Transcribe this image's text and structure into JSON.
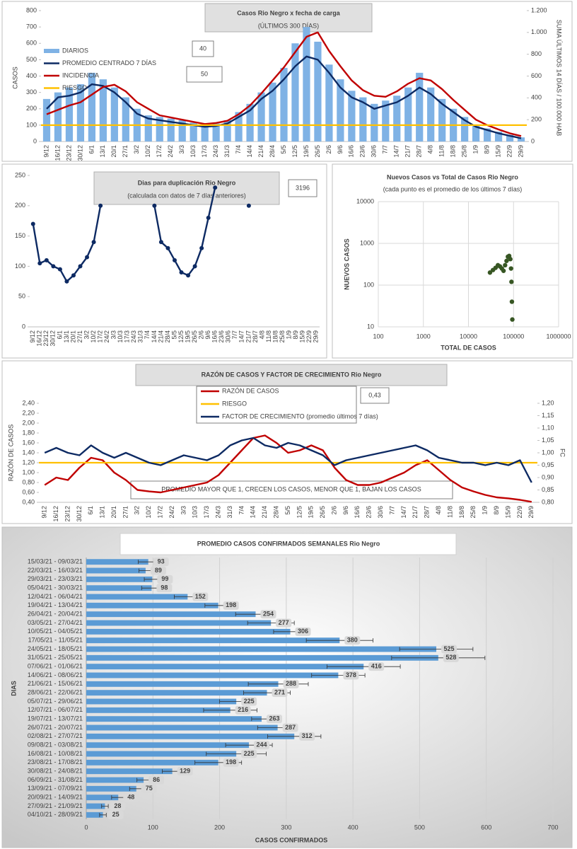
{
  "chart_data": [
    {
      "type": "combo",
      "title": "Casos Rio Negro x fecha de carga",
      "subtitle": "(ÚLTIMOS 300 DÍAS)",
      "ylabel": "CASOS",
      "y2label": "SUMA ÚLTIMOS 14 DÍAS / 100.000 HAB",
      "annotations": [
        "40",
        "50"
      ],
      "categories": [
        "9/12",
        "16/12",
        "23/12",
        "30/12",
        "6/1",
        "13/1",
        "20/1",
        "27/1",
        "3/2",
        "10/2",
        "17/2",
        "24/2",
        "3/3",
        "10/3",
        "17/3",
        "24/3",
        "31/3",
        "7/4",
        "14/4",
        "21/4",
        "28/4",
        "5/5",
        "12/5",
        "19/5",
        "26/5",
        "2/6",
        "9/6",
        "16/6",
        "23/6",
        "30/6",
        "7/7",
        "14/7",
        "21/7",
        "28/7",
        "4/8",
        "11/8",
        "18/8",
        "25/8",
        "1/9",
        "8/9",
        "15/9",
        "22/9",
        "29/9"
      ],
      "series": [
        {
          "name": "DIARIOS",
          "kind": "bar",
          "color": "#7fb2e5",
          "values": [
            260,
            300,
            330,
            350,
            420,
            380,
            330,
            270,
            200,
            160,
            150,
            140,
            130,
            115,
            100,
            110,
            130,
            180,
            230,
            300,
            360,
            450,
            600,
            700,
            610,
            470,
            380,
            310,
            270,
            230,
            250,
            280,
            330,
            420,
            330,
            260,
            200,
            150,
            100,
            80,
            60,
            40,
            25
          ]
        },
        {
          "name": "PROMEDIO CENTRADO 7 DÍAS",
          "kind": "line",
          "color": "#0d2a63",
          "values": [
            200,
            270,
            280,
            300,
            350,
            340,
            300,
            240,
            170,
            140,
            130,
            120,
            110,
            100,
            90,
            95,
            110,
            150,
            190,
            260,
            310,
            380,
            460,
            520,
            500,
            420,
            330,
            270,
            240,
            200,
            220,
            240,
            280,
            330,
            290,
            230,
            180,
            130,
            90,
            70,
            50,
            35,
            20
          ]
        },
        {
          "name": "INCIDENCIA",
          "kind": "line",
          "axis": "y2",
          "color": "#c00000",
          "values": [
            250,
            290,
            330,
            360,
            430,
            500,
            520,
            460,
            360,
            300,
            240,
            220,
            200,
            180,
            160,
            170,
            190,
            250,
            330,
            440,
            560,
            680,
            820,
            960,
            1000,
            830,
            690,
            560,
            470,
            420,
            410,
            460,
            530,
            580,
            560,
            480,
            380,
            290,
            200,
            150,
            110,
            75,
            50
          ]
        },
        {
          "name": "RIESGO",
          "kind": "hline",
          "color": "#ffc000",
          "value": 100
        }
      ],
      "ylim": [
        0,
        800
      ],
      "yticks": [
        0,
        100,
        200,
        300,
        400,
        500,
        600,
        700,
        800
      ],
      "y2lim": [
        0,
        1200
      ],
      "y2ticks": [
        0,
        200,
        400,
        600,
        800,
        {
          "value": 1000,
          "label": "1.000"
        },
        {
          "value": 1200,
          "label": "1.200"
        }
      ],
      "grid": false,
      "legend": "upper-left"
    },
    {
      "type": "line",
      "title": "Dias para duplicación Rio Negro",
      "subtitle": "(calculada con datos de 7 días anteriores)",
      "annotations": [
        "3196"
      ],
      "categories": [
        "9/12",
        "16/12",
        "23/12",
        "30/12",
        "6/1",
        "13/1",
        "20/1",
        "27/1",
        "3/2",
        "10/2",
        "17/2",
        "24/2",
        "3/3",
        "10/3",
        "17/3",
        "24/3",
        "31/3",
        "7/4",
        "14/4",
        "21/4",
        "28/4",
        "5/5",
        "12/5",
        "19/5",
        "26/5",
        "2/6",
        "9/6",
        "16/6",
        "23/6",
        "30/6",
        "7/7",
        "14/7",
        "21/7",
        "28/7",
        "4/8",
        "11/8",
        "18/8",
        "25/8",
        "1/9",
        "8/9",
        "15/9",
        "22/9",
        "29/9"
      ],
      "values": [
        170,
        105,
        110,
        100,
        95,
        75,
        85,
        100,
        115,
        140,
        200,
        null,
        null,
        null,
        null,
        null,
        null,
        null,
        200,
        140,
        130,
        110,
        90,
        85,
        100,
        130,
        180,
        230,
        null,
        null,
        null,
        null,
        200,
        null,
        null,
        null,
        null,
        null,
        null,
        null,
        null,
        null,
        null
      ],
      "color": "#0d2a63",
      "markers": true,
      "ylim": [
        0,
        250
      ],
      "yticks": [
        0,
        50,
        100,
        150,
        200,
        250
      ],
      "grid": false
    },
    {
      "type": "scatter",
      "title": "Nuevos Casos vs Total de Casos Rio Negro",
      "subtitle": "(cada punto es el promedio de los últimos 7 días)",
      "xlabel": "TOTAL DE CASOS",
      "ylabel": "NUEVOS CASOS",
      "xscale": "log",
      "yscale": "log",
      "x": [
        30000,
        35000,
        40000,
        45000,
        50000,
        55000,
        60000,
        65000,
        70000,
        75000,
        80000,
        85000,
        88000,
        90000,
        92000,
        94000
      ],
      "y": [
        200,
        230,
        260,
        300,
        280,
        250,
        220,
        300,
        380,
        480,
        500,
        420,
        250,
        120,
        40,
        15
      ],
      "color": "#375623",
      "xlim": [
        100,
        1000000
      ],
      "xticks": [
        100,
        1000,
        10000,
        100000,
        1000000
      ],
      "ylim": [
        10,
        10000
      ],
      "yticks": [
        10,
        100,
        1000,
        10000
      ],
      "grid": true
    },
    {
      "type": "combo",
      "title": "RAZÓN DE CASOS Y FACTOR DE CRECIMIENTO Rio Negro",
      "ylabel": "RAZÓN DE CASOS",
      "y2label": "FC",
      "annotations": [
        "0,43"
      ],
      "note": "PROMEDIO MAYOR QUE 1, CRECEN LOS CASOS, MENOR QUE 1, BAJAN LOS CASOS",
      "categories": [
        "9/12",
        "16/12",
        "23/12",
        "30/12",
        "6/1",
        "13/1",
        "20/1",
        "27/1",
        "3/2",
        "10/2",
        "17/2",
        "24/2",
        "3/3",
        "10/3",
        "17/3",
        "24/3",
        "31/3",
        "7/4",
        "14/4",
        "21/4",
        "28/4",
        "5/5",
        "12/5",
        "19/5",
        "26/5",
        "2/6",
        "9/6",
        "16/6",
        "23/6",
        "30/6",
        "7/7",
        "14/7",
        "21/7",
        "28/7",
        "4/8",
        "11/8",
        "18/8",
        "25/8",
        "1/9",
        "8/9",
        "15/9",
        "22/9",
        "29/9"
      ],
      "series": [
        {
          "name": "RAZÓN DE CASOS",
          "kind": "line",
          "color": "#c00000",
          "values": [
            0.75,
            0.9,
            0.85,
            1.1,
            1.3,
            1.25,
            1.0,
            0.85,
            0.65,
            0.62,
            0.6,
            0.65,
            0.7,
            0.75,
            0.8,
            0.95,
            1.2,
            1.45,
            1.7,
            1.75,
            1.6,
            1.4,
            1.45,
            1.55,
            1.45,
            1.1,
            0.85,
            0.75,
            0.75,
            0.8,
            0.9,
            1.0,
            1.15,
            1.25,
            1.05,
            0.85,
            0.7,
            0.62,
            0.55,
            0.5,
            0.48,
            0.45,
            0.41
          ]
        },
        {
          "name": "RIESGO",
          "kind": "hline",
          "color": "#ffc000",
          "value": 1.2
        },
        {
          "name": "FACTOR DE CRECIMIENTO (promedio últimos 7 días)",
          "kind": "line",
          "axis": "y2",
          "color": "#0d2a63",
          "values": [
            1.0,
            1.02,
            1.0,
            0.99,
            1.03,
            1.0,
            0.98,
            1.0,
            0.98,
            0.96,
            0.95,
            0.97,
            0.99,
            0.98,
            0.97,
            0.99,
            1.03,
            1.05,
            1.06,
            1.03,
            1.02,
            1.04,
            1.03,
            1.01,
            0.99,
            0.95,
            0.97,
            0.98,
            0.99,
            1.0,
            1.01,
            1.02,
            1.03,
            1.01,
            0.98,
            0.97,
            0.96,
            0.96,
            0.95,
            0.96,
            0.95,
            0.97,
            0.88
          ]
        }
      ],
      "ylim": [
        0.4,
        2.4
      ],
      "yticks": [
        {
          "value": 0.4,
          "label": "0,40"
        },
        {
          "value": 0.6,
          "label": "0,60"
        },
        {
          "value": 0.8,
          "label": "0,80"
        },
        {
          "value": 1.0,
          "label": "1,00"
        },
        {
          "value": 1.2,
          "label": "1,20"
        },
        {
          "value": 1.4,
          "label": "1,40"
        },
        {
          "value": 1.6,
          "label": "1,60"
        },
        {
          "value": 1.8,
          "label": "1,80"
        },
        {
          "value": 2.0,
          "label": "2,00"
        },
        {
          "value": 2.2,
          "label": "2,20"
        },
        {
          "value": 2.4,
          "label": "2,40"
        }
      ],
      "y2lim": [
        0.8,
        1.2
      ],
      "y2ticks": [
        {
          "value": 0.8,
          "label": "0,80"
        },
        {
          "value": 0.85,
          "label": "0,85"
        },
        {
          "value": 0.9,
          "label": "0,90"
        },
        {
          "value": 0.95,
          "label": "0,95"
        },
        {
          "value": 1.0,
          "label": "1,00"
        },
        {
          "value": 1.05,
          "label": "1,05"
        },
        {
          "value": 1.1,
          "label": "1,10"
        },
        {
          "value": 1.15,
          "label": "1,15"
        },
        {
          "value": 1.2,
          "label": "1,20"
        }
      ],
      "grid": false,
      "legend": "upper-center"
    },
    {
      "type": "hbar",
      "title": "PROMEDIO CASOS CONFIRMADOS SEMANALES Rio Negro",
      "xlabel": "CASOS CONFIRMADOS",
      "ylabel": "DIAS",
      "categories": [
        "15/03/21 - 09/03/21",
        "22/03/21 - 16/03/21",
        "29/03/21 - 23/03/21",
        "05/04/21 - 30/03/21",
        "12/04/21 - 06/04/21",
        "19/04/21 - 13/04/21",
        "26/04/21 - 20/04/21",
        "03/05/21 - 27/04/21",
        "10/05/21 - 04/05/21",
        "17/05/21 - 11/05/21",
        "24/05/21 - 18/05/21",
        "31/05/21 - 25/05/21",
        "07/06/21 - 01/06/21",
        "14/06/21 - 08/06/21",
        "21/06/21 - 15/06/21",
        "28/06/21 - 22/06/21",
        "05/07/21 - 29/06/21",
        "12/07/21 - 06/07/21",
        "19/07/21 - 13/07/21",
        "26/07/21 - 20/07/21",
        "02/08/21 - 27/07/21",
        "09/08/21 - 03/08/21",
        "16/08/21 - 10/08/21",
        "23/08/21 - 17/08/21",
        "30/08/21 - 24/08/21",
        "06/09/21 - 31/08/21",
        "13/09/21 - 07/09/21",
        "20/09/21 - 14/09/21",
        "27/09/21 - 21/09/21",
        "04/10/21 - 28/09/21"
      ],
      "values": [
        93,
        89,
        99,
        98,
        152,
        198,
        254,
        277,
        306,
        380,
        525,
        528,
        416,
        378,
        288,
        271,
        225,
        216,
        263,
        287,
        312,
        244,
        225,
        198,
        129,
        86,
        75,
        48,
        28,
        25
      ],
      "errors": [
        15,
        10,
        12,
        15,
        20,
        20,
        30,
        35,
        25,
        50,
        55,
        70,
        55,
        40,
        45,
        35,
        25,
        40,
        15,
        30,
        40,
        35,
        45,
        35,
        15,
        10,
        10,
        10,
        5,
        5
      ],
      "color": "#5b9bd5",
      "xlim": [
        0,
        700
      ],
      "xticks": [
        0,
        100,
        200,
        300,
        400,
        500,
        600,
        700
      ],
      "grid": true
    }
  ]
}
